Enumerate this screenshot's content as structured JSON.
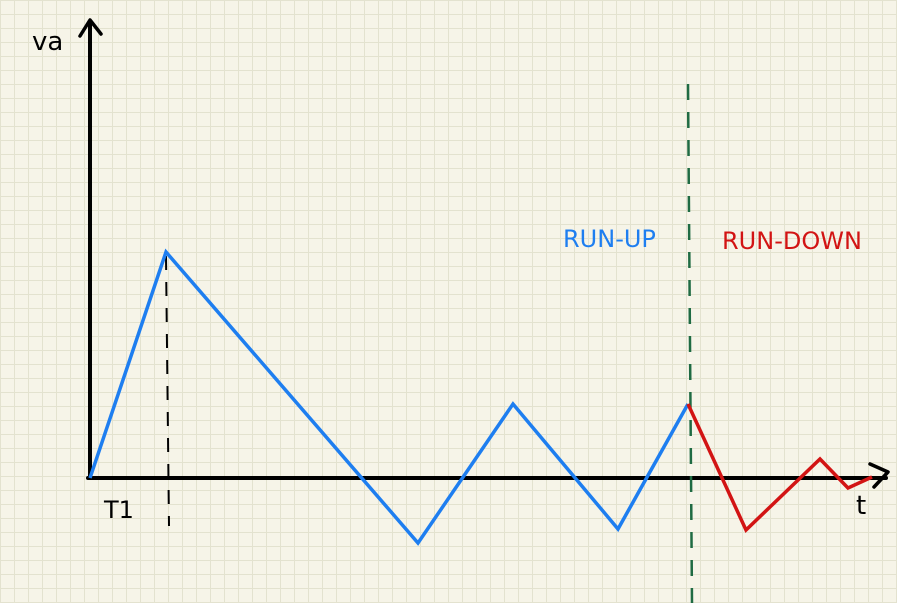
{
  "labels": {
    "y_axis": "va",
    "x_axis": "t",
    "time_marker": "T1",
    "run_up": "RUN-UP",
    "run_down": "RUN-DOWN"
  },
  "colors": {
    "axes": "#000000",
    "run_up": "#1e7ef0",
    "run_down": "#d21414",
    "divider": "#1f6b43",
    "marker": "#000000"
  }
}
